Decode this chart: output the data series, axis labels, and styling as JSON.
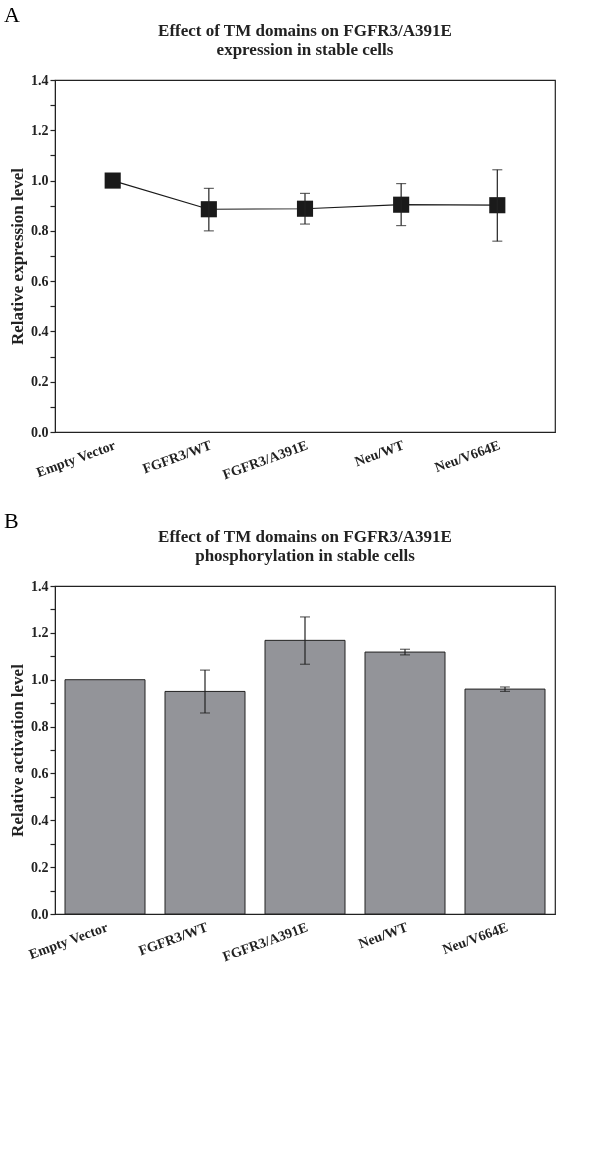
{
  "chart_data": [
    {
      "type": "line",
      "title": "Effect of TM domains on FGFR3/A391E expression in stable cells",
      "ylabel": "Relative expression level",
      "annotations": [
        "A"
      ],
      "categories": [
        "Empty Vector",
        "FGFR3/WT",
        "FGFR3/A391E",
        "Neu/WT",
        "Neu/V664E"
      ],
      "series": [
        {
          "color": "#1a1a1a",
          "values": [
            1.0,
            0.886,
            0.888,
            0.904,
            0.902
          ],
          "errors": [
            null,
            [
              0.8,
              0.969
            ],
            [
              0.827,
              0.949
            ],
            [
              0.821,
              0.988
            ],
            [
              0.759,
              1.043
            ]
          ]
        }
      ],
      "marker": "square",
      "line_style": "solid",
      "ylim": [
        0,
        1.4
      ],
      "yticks": [
        {
          "value": 0,
          "label": "0.0"
        },
        {
          "value": 0.1,
          "label": null
        },
        {
          "value": 0.2,
          "label": "0.2"
        },
        {
          "value": 0.3,
          "label": null
        },
        {
          "value": 0.4,
          "label": "0.4"
        },
        {
          "value": 0.5,
          "label": null
        },
        {
          "value": 0.6,
          "label": "0.6"
        },
        {
          "value": 0.7,
          "label": null
        },
        {
          "value": 0.8,
          "label": "0.8"
        },
        {
          "value": 0.9,
          "label": null
        },
        {
          "value": 1.0,
          "label": "1.0"
        },
        {
          "value": 1.1,
          "label": null
        },
        {
          "value": 1.2,
          "label": "1.2"
        },
        {
          "value": 1.3,
          "label": null
        },
        {
          "value": 1.4,
          "label": "1.4"
        }
      ]
    },
    {
      "type": "bar",
      "title": "Effect of TM domains on FGFR3/A391E phosphorylation in stable cells",
      "ylabel": "Relative activation level",
      "annotations": [
        "B"
      ],
      "categories": [
        "Empty Vector",
        "FGFR3/WT",
        "FGFR3/A391E",
        "Neu/WT",
        "Neu/V664E"
      ],
      "series": [
        {
          "color": "#939499",
          "values": [
            1.0,
            0.95,
            1.168,
            1.118,
            0.96
          ],
          "errors": [
            null,
            [
              0.858,
              1.041
            ],
            [
              1.066,
              1.268
            ],
            [
              1.106,
              1.13
            ],
            [
              0.95,
              0.969
            ]
          ]
        }
      ],
      "ylim": [
        0,
        1.4
      ],
      "yticks": [
        {
          "value": 0,
          "label": "0.0"
        },
        {
          "value": 0.1,
          "label": null
        },
        {
          "value": 0.2,
          "label": "0.2"
        },
        {
          "value": 0.3,
          "label": null
        },
        {
          "value": 0.4,
          "label": "0.4"
        },
        {
          "value": 0.5,
          "label": null
        },
        {
          "value": 0.6,
          "label": "0.6"
        },
        {
          "value": 0.7,
          "label": null
        },
        {
          "value": 0.8,
          "label": "0.8"
        },
        {
          "value": 0.9,
          "label": null
        },
        {
          "value": 1.0,
          "label": "1.0"
        },
        {
          "value": 1.1,
          "label": null
        },
        {
          "value": 1.2,
          "label": "1.2"
        },
        {
          "value": 1.3,
          "label": null
        },
        {
          "value": 1.4,
          "label": "1.4"
        }
      ]
    }
  ]
}
